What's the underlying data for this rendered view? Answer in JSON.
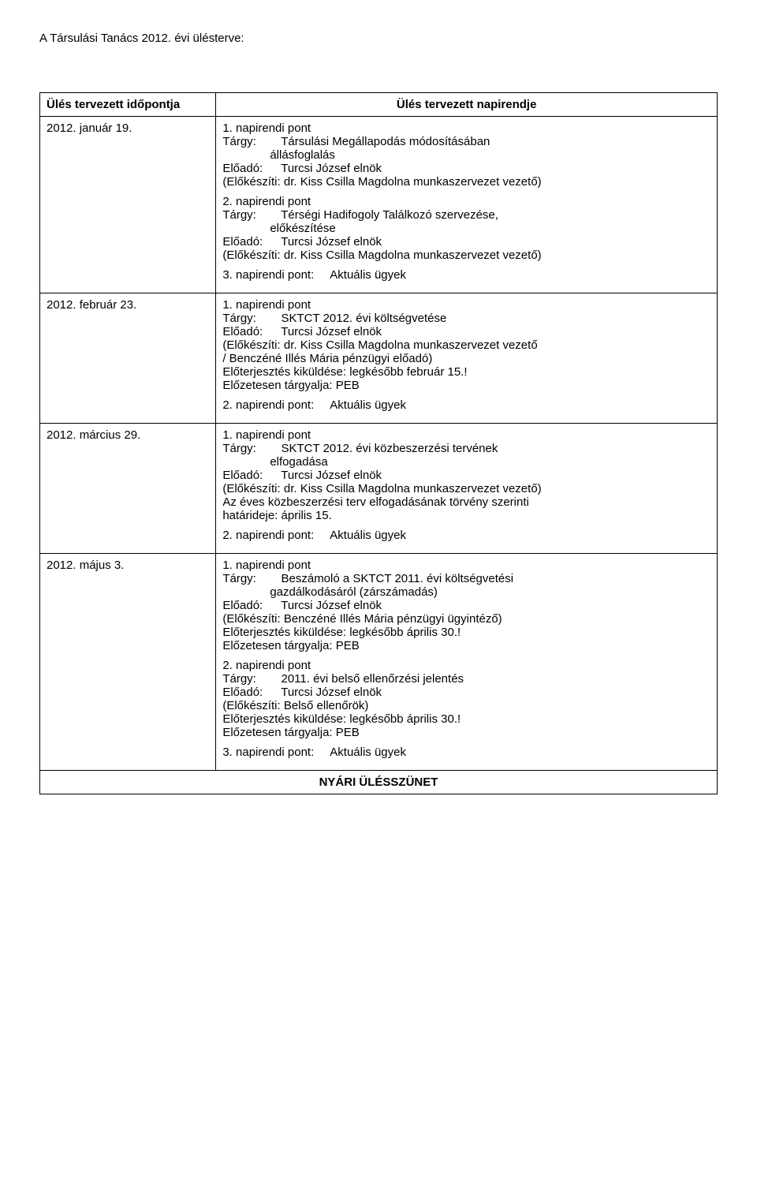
{
  "doc_title": "A Társulási Tanács 2012. évi ülésterve:",
  "header": {
    "left": "Ülés tervezett időpontja",
    "right": "Ülés tervezett napirendje"
  },
  "rows": [
    {
      "date": "2012. január 19.",
      "item1_header": "1. napirendi pont",
      "item1_targy_label": "Tárgy:",
      "item1_targy": "Társulási Megállapodás módosításában",
      "item1_targy2": "állásfoglalás",
      "item1_eloado_label": "Előadó:",
      "item1_eloado": "Turcsi József elnök",
      "item1_elokesziti": "(Előkészíti: dr. Kiss Csilla Magdolna munkaszervezet vezető)",
      "item2_header": "2. napirendi pont",
      "item2_targy_label": "Tárgy:",
      "item2_targy": "Térségi Hadifogoly Találkozó szervezése,",
      "item2_targy2": "előkészítése",
      "item2_eloado_label": "Előadó:",
      "item2_eloado": "Turcsi József elnök",
      "item2_elokesziti": "(Előkészíti: dr. Kiss Csilla Magdolna munkaszervezet vezető)",
      "item3_label": "3. napirendi pont:",
      "item3_text": "Aktuális ügyek"
    },
    {
      "date": "2012. február 23.",
      "item1_header": "1. napirendi pont",
      "item1_targy_label": "Tárgy:",
      "item1_targy": "SKTCT 2012. évi költségvetése",
      "item1_eloado_label": "Előadó:",
      "item1_eloado": "Turcsi József elnök",
      "item1_elokesziti": "(Előkészíti: dr. Kiss Csilla Magdolna munkaszervezet vezető",
      "item1_line2": "/ Benczéné Illés Mária pénzügyi előadó)",
      "item1_line3": "Előterjesztés kiküldése: legkésőbb február 15.!",
      "item1_line4": "Előzetesen tárgyalja: PEB",
      "item2_label": "2. napirendi pont:",
      "item2_text": "Aktuális ügyek"
    },
    {
      "date": "2012. március 29.",
      "item1_header": "1. napirendi pont",
      "item1_targy_label": "Tárgy:",
      "item1_targy": "SKTCT 2012. évi közbeszerzési tervének",
      "item1_targy2": "elfogadása",
      "item1_eloado_label": "Előadó:",
      "item1_eloado": "Turcsi József elnök",
      "item1_elokesziti": "(Előkészíti: dr. Kiss Csilla Magdolna munkaszervezet vezető)",
      "item1_line2": "Az éves közbeszerzési terv elfogadásának törvény szerinti",
      "item1_line3": "határideje: április 15.",
      "item2_label": "2. napirendi pont:",
      "item2_text": "Aktuális ügyek"
    },
    {
      "date": "2012. május 3.",
      "item1_header": "1. napirendi pont",
      "item1_targy_label": "Tárgy:",
      "item1_targy": "Beszámoló a SKTCT 2011. évi költségvetési",
      "item1_targy2": "gazdálkodásáról (zárszámadás)",
      "item1_eloado_label": "Előadó:",
      "item1_eloado": "Turcsi József elnök",
      "item1_elokesziti": "(Előkészíti: Benczéné Illés Mária pénzügyi ügyintéző)",
      "item1_line2": "Előterjesztés kiküldése: legkésőbb április 30.!",
      "item1_line3": "Előzetesen tárgyalja: PEB",
      "item2_header": "2. napirendi pont",
      "item2_targy_label": "Tárgy:",
      "item2_targy": "2011. évi belső ellenőrzési jelentés",
      "item2_eloado_label": "Előadó:",
      "item2_eloado": "Turcsi József elnök",
      "item2_elokesziti": "(Előkészíti: Belső ellenőrök)",
      "item2_line2": "Előterjesztés kiküldése: legkésőbb április 30.!",
      "item2_line3": "Előzetesen tárgyalja: PEB",
      "item3_label": "3. napirendi pont:",
      "item3_text": "Aktuális ügyek"
    }
  ],
  "footer": "NYÁRI ÜLÉSSZÜNET"
}
